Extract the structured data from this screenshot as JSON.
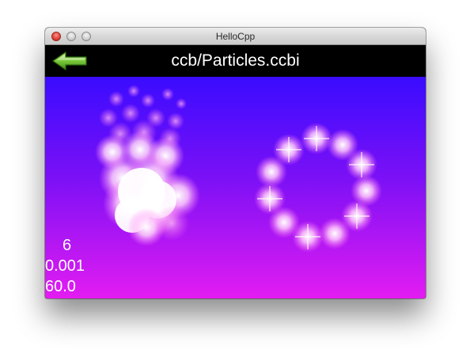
{
  "window": {
    "title": "HelloCpp"
  },
  "scene": {
    "title": "ccb/Particles.ccbi"
  },
  "stats": {
    "object_count": "6",
    "seconds_per_frame": "0.001",
    "fps": "60.0"
  },
  "icons": {
    "back": "left-arrow-icon",
    "close": "close-button",
    "minimize": "minimize-button",
    "zoom": "zoom-button"
  },
  "colors": {
    "background_top": "#3a0cff",
    "background_bottom": "#e31cf1",
    "header_bar": "#000000",
    "arrow_green": "#7bc93a",
    "particle": "#ffffff"
  }
}
